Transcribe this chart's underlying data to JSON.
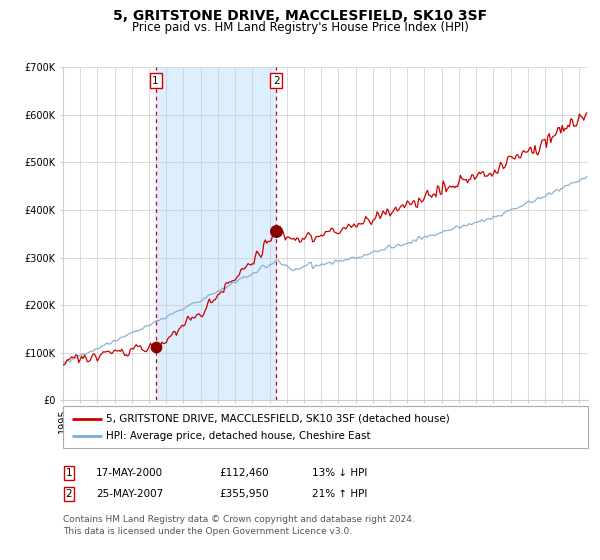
{
  "title": "5, GRITSTONE DRIVE, MACCLESFIELD, SK10 3SF",
  "subtitle": "Price paid vs. HM Land Registry's House Price Index (HPI)",
  "ylim": [
    0,
    700000
  ],
  "xlim_start": 1995.0,
  "xlim_end": 2025.5,
  "sale1_date": 2000.38,
  "sale1_price": 112460,
  "sale2_date": 2007.39,
  "sale2_price": 355950,
  "line_color_property": "#cc0000",
  "line_color_hpi": "#7faacc",
  "dot_color": "#880000",
  "shade_color": "#ddeeff",
  "dashed_color": "#cc0000",
  "grid_color": "#cccccc",
  "background_color": "#ffffff",
  "legend_label_property": "5, GRITSTONE DRIVE, MACCLESFIELD, SK10 3SF (detached house)",
  "legend_label_hpi": "HPI: Average price, detached house, Cheshire East",
  "table_row1": [
    "1",
    "17-MAY-2000",
    "£112,460",
    "13% ↓ HPI"
  ],
  "table_row2": [
    "2",
    "25-MAY-2007",
    "£355,950",
    "21% ↑ HPI"
  ],
  "footer": "Contains HM Land Registry data © Crown copyright and database right 2024.\nThis data is licensed under the Open Government Licence v3.0.",
  "title_fontsize": 10,
  "subtitle_fontsize": 8.5,
  "tick_fontsize": 7,
  "legend_fontsize": 7.5,
  "table_fontsize": 7.5,
  "footer_fontsize": 6.5
}
